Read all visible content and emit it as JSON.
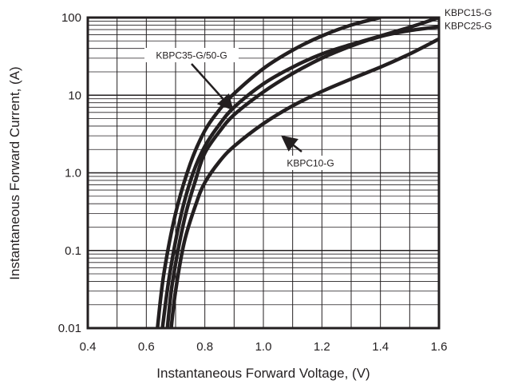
{
  "chart_data": {
    "type": "line",
    "title": "",
    "xlabel": "Instantaneous Forward Voltage, (V)",
    "ylabel": "Instantaneous Forward Current, (A)",
    "xlim": [
      0.4,
      1.6
    ],
    "ylim": [
      0.01,
      100
    ],
    "y_scale": "log",
    "grid": true,
    "x_ticks": [
      "0.4",
      "0.6",
      "0.8",
      "1.0",
      "1.2",
      "1.4",
      "1.6"
    ],
    "y_ticks": [
      "0.01",
      "0.1",
      "1.0",
      "10",
      "100"
    ],
    "series": [
      {
        "name": "KBPC35-G/50-G",
        "x": [
          0.638,
          0.66,
          0.7,
          0.75,
          0.8,
          0.85,
          0.9,
          1.0,
          1.1,
          1.2,
          1.3,
          1.4
        ],
        "y": [
          0.01,
          0.05,
          0.3,
          1.3,
          3.5,
          6.5,
          10.5,
          22,
          38,
          58,
          80,
          100
        ]
      },
      {
        "name": "KBPC15-G",
        "x": [
          0.655,
          0.68,
          0.72,
          0.76,
          0.8,
          0.85,
          0.9,
          1.0,
          1.1,
          1.2,
          1.3,
          1.4,
          1.5,
          1.6
        ],
        "y": [
          0.01,
          0.05,
          0.3,
          1.0,
          2.2,
          4.2,
          7.0,
          14,
          23,
          34,
          45,
          58,
          75,
          100
        ]
      },
      {
        "name": "KBPC25-G",
        "x": [
          0.672,
          0.69,
          0.73,
          0.77,
          0.8,
          0.85,
          0.9,
          1.0,
          1.1,
          1.2,
          1.3,
          1.4,
          1.5,
          1.6
        ],
        "y": [
          0.01,
          0.04,
          0.25,
          0.85,
          1.8,
          3.4,
          5.6,
          11,
          19,
          30,
          43,
          57,
          68,
          76
        ]
      },
      {
        "name": "KBPC10-G",
        "x": [
          0.685,
          0.7,
          0.73,
          0.77,
          0.8,
          0.85,
          0.9,
          1.0,
          1.1,
          1.2,
          1.3,
          1.4,
          1.5,
          1.6
        ],
        "y": [
          0.01,
          0.03,
          0.13,
          0.4,
          0.75,
          1.4,
          2.2,
          4.3,
          7.3,
          11.2,
          16.2,
          23,
          34,
          53
        ]
      }
    ],
    "annotations": [
      {
        "text": "KBPC35-G/50-G",
        "series": 0,
        "x": 0.9,
        "y": 6.3
      },
      {
        "text": "KBPC10-G",
        "series": 3,
        "x": 1.06,
        "y": 3.1
      },
      {
        "text": "KBPC15-G",
        "series": 1
      },
      {
        "text": "KBPC25-G",
        "series": 2
      }
    ]
  }
}
